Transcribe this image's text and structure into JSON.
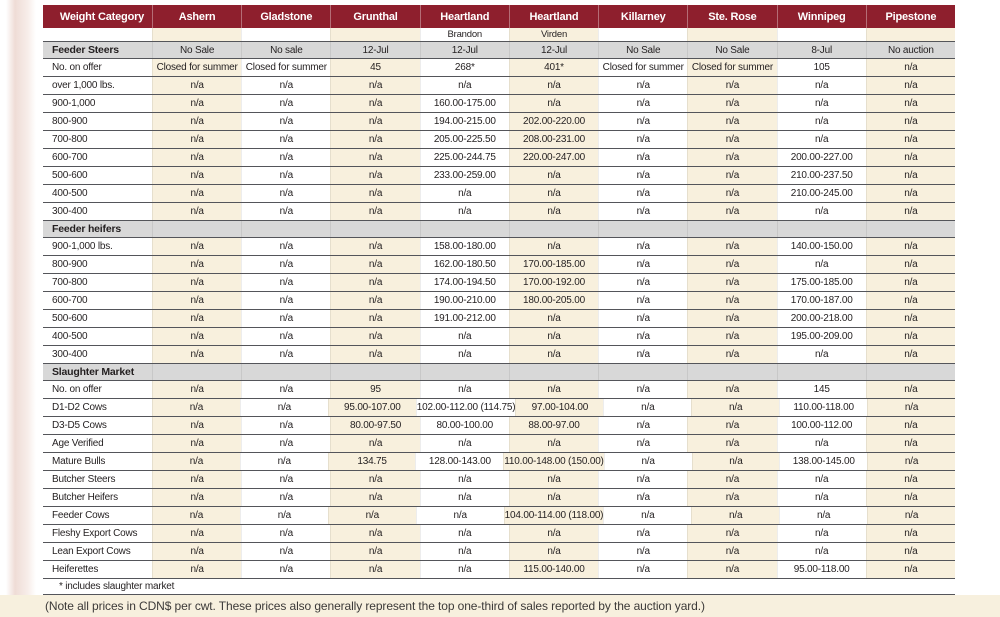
{
  "table": {
    "corner_label": "Weight Category",
    "columns": [
      {
        "name": "Ashern",
        "sub": ""
      },
      {
        "name": "Gladstone",
        "sub": ""
      },
      {
        "name": "Grunthal",
        "sub": ""
      },
      {
        "name": "Heartland",
        "sub": "Brandon"
      },
      {
        "name": "Heartland",
        "sub": "Virden"
      },
      {
        "name": "Killarney",
        "sub": ""
      },
      {
        "name": "Ste. Rose",
        "sub": ""
      },
      {
        "name": "Winnipeg",
        "sub": ""
      },
      {
        "name": "Pipestone",
        "sub": ""
      }
    ],
    "sections": [
      {
        "label": "Feeder Steers",
        "dates": [
          "No Sale",
          "No sale",
          "12-Jul",
          "12-Jul",
          "12-Jul",
          "No Sale",
          "No Sale",
          "8-Jul",
          "No auction"
        ],
        "rows": [
          {
            "label": "No. on offer",
            "values": [
              "Closed for summer",
              "Closed for summer",
              "45",
              "268*",
              "401*",
              "Closed for summer",
              "Closed for summer",
              "105",
              "n/a"
            ]
          },
          {
            "label": "over 1,000 lbs.",
            "values": [
              "n/a",
              "n/a",
              "n/a",
              "n/a",
              "n/a",
              "n/a",
              "n/a",
              "n/a",
              "n/a"
            ]
          },
          {
            "label": "900-1,000",
            "values": [
              "n/a",
              "n/a",
              "n/a",
              "160.00-175.00",
              "n/a",
              "n/a",
              "n/a",
              "n/a",
              "n/a"
            ]
          },
          {
            "label": "800-900",
            "values": [
              "n/a",
              "n/a",
              "n/a",
              "194.00-215.00",
              "202.00-220.00",
              "n/a",
              "n/a",
              "n/a",
              "n/a"
            ]
          },
          {
            "label": "700-800",
            "values": [
              "n/a",
              "n/a",
              "n/a",
              "205.00-225.50",
              "208.00-231.00",
              "n/a",
              "n/a",
              "n/a",
              "n/a"
            ]
          },
          {
            "label": "600-700",
            "values": [
              "n/a",
              "n/a",
              "n/a",
              "225.00-244.75",
              "220.00-247.00",
              "n/a",
              "n/a",
              "200.00-227.00",
              "n/a"
            ]
          },
          {
            "label": "500-600",
            "values": [
              "n/a",
              "n/a",
              "n/a",
              "233.00-259.00",
              "n/a",
              "n/a",
              "n/a",
              "210.00-237.50",
              "n/a"
            ]
          },
          {
            "label": "400-500",
            "values": [
              "n/a",
              "n/a",
              "n/a",
              "n/a",
              "n/a",
              "n/a",
              "n/a",
              "210.00-245.00",
              "n/a"
            ]
          },
          {
            "label": "300-400",
            "values": [
              "n/a",
              "n/a",
              "n/a",
              "n/a",
              "n/a",
              "n/a",
              "n/a",
              "n/a",
              "n/a"
            ]
          }
        ]
      },
      {
        "label": "Feeder heifers",
        "dates": null,
        "rows": [
          {
            "label": "900-1,000 lbs.",
            "values": [
              "n/a",
              "n/a",
              "n/a",
              "158.00-180.00",
              "n/a",
              "n/a",
              "n/a",
              "140.00-150.00",
              "n/a"
            ]
          },
          {
            "label": "800-900",
            "values": [
              "n/a",
              "n/a",
              "n/a",
              "162.00-180.50",
              "170.00-185.00",
              "n/a",
              "n/a",
              "n/a",
              "n/a"
            ]
          },
          {
            "label": "700-800",
            "values": [
              "n/a",
              "n/a",
              "n/a",
              "174.00-194.50",
              "170.00-192.00",
              "n/a",
              "n/a",
              "175.00-185.00",
              "n/a"
            ]
          },
          {
            "label": "600-700",
            "values": [
              "n/a",
              "n/a",
              "n/a",
              "190.00-210.00",
              "180.00-205.00",
              "n/a",
              "n/a",
              "170.00-187.00",
              "n/a"
            ]
          },
          {
            "label": "500-600",
            "values": [
              "n/a",
              "n/a",
              "n/a",
              "191.00-212.00",
              "n/a",
              "n/a",
              "n/a",
              "200.00-218.00",
              "n/a"
            ]
          },
          {
            "label": "400-500",
            "values": [
              "n/a",
              "n/a",
              "n/a",
              "n/a",
              "n/a",
              "n/a",
              "n/a",
              "195.00-209.00",
              "n/a"
            ]
          },
          {
            "label": "300-400",
            "values": [
              "n/a",
              "n/a",
              "n/a",
              "n/a",
              "n/a",
              "n/a",
              "n/a",
              "n/a",
              "n/a"
            ]
          }
        ]
      },
      {
        "label": "Slaughter Market",
        "dates": null,
        "rows": [
          {
            "label": "No. on offer",
            "values": [
              "n/a",
              "n/a",
              "95",
              "n/a",
              "n/a",
              "n/a",
              "n/a",
              "145",
              "n/a"
            ]
          },
          {
            "label": "D1-D2 Cows",
            "values": [
              "n/a",
              "n/a",
              "95.00-107.00",
              "102.00-112.00 (114.75)",
              "97.00-104.00",
              "n/a",
              "n/a",
              "110.00-118.00",
              "n/a"
            ]
          },
          {
            "label": "D3-D5 Cows",
            "values": [
              "n/a",
              "n/a",
              "80.00-97.50",
              "80.00-100.00",
              "88.00-97.00",
              "n/a",
              "n/a",
              "100.00-112.00",
              "n/a"
            ]
          },
          {
            "label": "Age Verified",
            "values": [
              "n/a",
              "n/a",
              "n/a",
              "n/a",
              "n/a",
              "n/a",
              "n/a",
              "n/a",
              "n/a"
            ]
          },
          {
            "label": "Mature Bulls",
            "values": [
              "n/a",
              "n/a",
              "134.75",
              "128.00-143.00",
              "110.00-148.00 (150.00)",
              "n/a",
              "n/a",
              "138.00-145.00",
              "n/a"
            ]
          },
          {
            "label": "Butcher Steers",
            "values": [
              "n/a",
              "n/a",
              "n/a",
              "n/a",
              "n/a",
              "n/a",
              "n/a",
              "n/a",
              "n/a"
            ]
          },
          {
            "label": "Butcher Heifers",
            "values": [
              "n/a",
              "n/a",
              "n/a",
              "n/a",
              "n/a",
              "n/a",
              "n/a",
              "n/a",
              "n/a"
            ]
          },
          {
            "label": "Feeder Cows",
            "values": [
              "n/a",
              "n/a",
              "n/a",
              "n/a",
              "104.00-114.00 (118.00)",
              "n/a",
              "n/a",
              "n/a",
              "n/a"
            ]
          },
          {
            "label": "Fleshy Export Cows",
            "values": [
              "n/a",
              "n/a",
              "n/a",
              "n/a",
              "n/a",
              "n/a",
              "n/a",
              "n/a",
              "n/a"
            ]
          },
          {
            "label": "Lean Export Cows",
            "values": [
              "n/a",
              "n/a",
              "n/a",
              "n/a",
              "n/a",
              "n/a",
              "n/a",
              "n/a",
              "n/a"
            ]
          },
          {
            "label": "Heiferettes",
            "values": [
              "n/a",
              "n/a",
              "n/a",
              "n/a",
              "115.00-140.00",
              "n/a",
              "n/a",
              "95.00-118.00",
              "n/a"
            ]
          }
        ]
      }
    ],
    "footnote": "* includes slaughter market"
  },
  "note": "(Note all prices in CDN$ per cwt. These prices also generally represent the top one-third of sales reported by the auction yard.)",
  "colors": {
    "header_red": "#8e1f2d",
    "section_gray": "#d8d8d8",
    "stripe_cream": "#f8f0dd",
    "note_band": "#f7f0de",
    "row_line": "#54555a",
    "page_edge_pink": "#efdcd6"
  }
}
